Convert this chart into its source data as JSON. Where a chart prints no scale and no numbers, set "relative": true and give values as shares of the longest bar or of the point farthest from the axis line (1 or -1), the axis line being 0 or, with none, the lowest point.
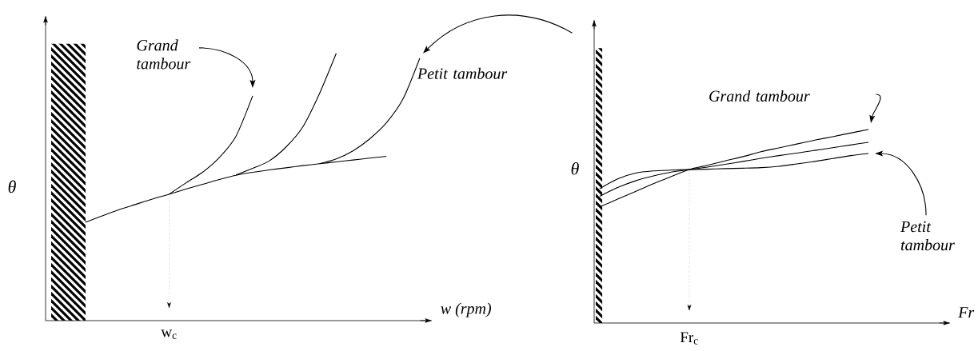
{
  "chart_data": [
    {
      "type": "line",
      "relative": true,
      "ylabel": "θ",
      "xlabel": "w (rpm)",
      "categories": [
        null,
        null,
        null,
        null,
        null,
        null,
        null,
        null,
        null,
        null,
        null,
        null,
        null,
        null,
        null,
        null,
        null,
        null,
        null,
        null,
        null
      ],
      "series": [
        {
          "color": "#000000",
          "values": [
            0.368,
            0.392,
            0.415,
            0.435,
            0.455,
            0.473,
            0.492,
            0.51,
            0.528,
            0.544,
            0.555,
            0.564,
            0.572,
            0.58,
            0.587,
            0.594,
            0.601,
            0.608,
            0.615,
            null,
            null
          ]
        },
        {
          "color": "#000000",
          "values": [
            null,
            null,
            null,
            null,
            null,
            0.473,
            0.515,
            0.555,
            0.61,
            0.69,
            0.841,
            null,
            null,
            null,
            null,
            null,
            null,
            null,
            null,
            null,
            null
          ]
        },
        {
          "color": "#000000",
          "values": [
            null,
            null,
            null,
            null,
            null,
            null,
            null,
            null,
            null,
            0.545,
            0.57,
            0.598,
            0.65,
            0.725,
            0.85,
            1.0,
            null,
            null,
            null,
            null,
            null
          ]
        },
        {
          "color": "#000000",
          "values": [
            null,
            null,
            null,
            null,
            null,
            null,
            null,
            null,
            null,
            null,
            null,
            null,
            null,
            null,
            0.587,
            0.605,
            0.635,
            0.68,
            0.74,
            0.83,
            0.982
          ]
        }
      ],
      "annotations": [
        "Grand tambour",
        "Petit tambour",
        "w$_{c}$"
      ]
    },
    {
      "type": "line",
      "relative": true,
      "ylabel": "θ",
      "xlabel": "Fr",
      "categories": [
        null,
        null,
        null,
        null,
        null,
        null,
        null,
        null,
        null,
        null,
        null,
        null,
        null,
        null,
        null,
        null
      ],
      "series": [
        {
          "color": "#000000",
          "values": [
            0.6,
            0.64,
            0.68,
            0.72,
            0.757,
            0.793,
            0.815,
            0.838,
            0.86,
            0.885,
            0.905,
            0.925,
            0.945,
            0.963,
            0.982,
            1.0
          ]
        },
        {
          "color": "#000000",
          "values": [
            0.655,
            0.7,
            0.735,
            0.76,
            0.78,
            0.793,
            0.806,
            0.82,
            0.835,
            0.851,
            0.865,
            0.878,
            0.892,
            0.906,
            0.92,
            0.934
          ]
        },
        {
          "color": "#000000",
          "values": [
            0.694,
            0.745,
            0.775,
            0.786,
            0.79,
            0.793,
            0.795,
            0.798,
            0.8,
            0.803,
            0.81,
            0.822,
            0.835,
            0.85,
            0.865,
            0.876
          ]
        }
      ],
      "annotations": [
        "Grand tambour",
        "Petit tambour",
        "Fr$_{c}$"
      ]
    }
  ]
}
